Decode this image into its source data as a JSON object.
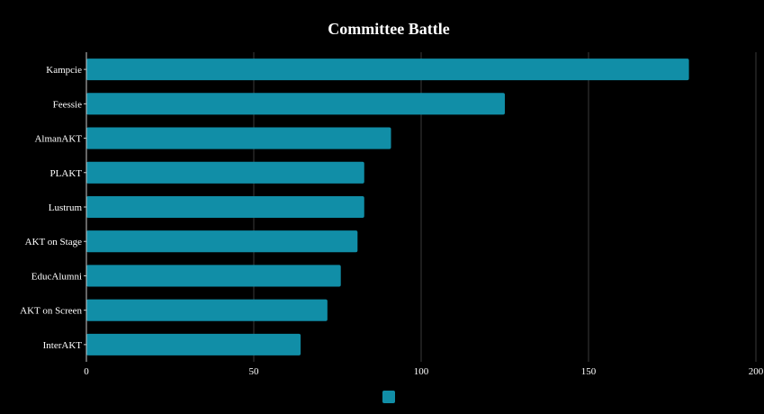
{
  "chart_data": {
    "type": "bar",
    "orientation": "horizontal",
    "title": "Committee Battle",
    "categories": [
      "Kampcie",
      "Feessie",
      "AlmanAKT",
      "PLAKT",
      "Lustrum",
      "AKT on Stage",
      "EducAlumni",
      "AKT on Screen",
      "InterAKT"
    ],
    "values": [
      180,
      125,
      91,
      83,
      83,
      81,
      76,
      72,
      64
    ],
    "xlim": [
      0,
      200
    ],
    "xticks": [
      0,
      50,
      100,
      150,
      200
    ],
    "xtick_labels": [
      "0",
      "50",
      "100",
      "150",
      "200"
    ],
    "xlabel": "",
    "ylabel": "",
    "grid": "vertical",
    "legend": {
      "position": "bottom-center",
      "entries": [
        ""
      ]
    },
    "colors": {
      "bar": "#118ea7",
      "background": "#000000",
      "grid": "#3a3a3a",
      "axis": "#cccccc",
      "text": "#ffffff"
    }
  }
}
